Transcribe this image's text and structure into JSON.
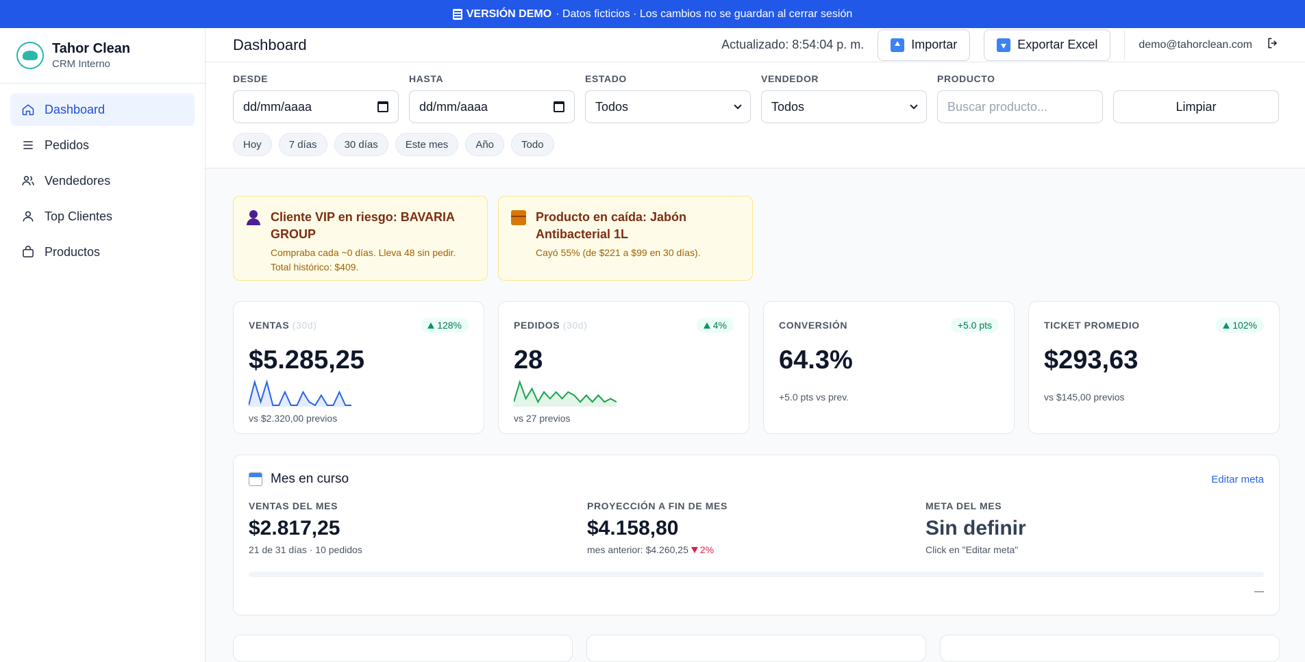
{
  "banner": {
    "icon": "clapperboard-icon",
    "strong": "VERSIÓN DEMO",
    "text": "· Datos ficticios · Los cambios no se guardan al cerrar sesión"
  },
  "brand": {
    "name": "Tahor Clean",
    "subtitle": "CRM Interno"
  },
  "nav": [
    {
      "label": "Dashboard",
      "icon": "home-icon",
      "active": true
    },
    {
      "label": "Pedidos",
      "icon": "list-icon"
    },
    {
      "label": "Vendedores",
      "icon": "users-icon"
    },
    {
      "label": "Top Clientes",
      "icon": "user-icon"
    },
    {
      "label": "Productos",
      "icon": "bag-icon"
    }
  ],
  "header": {
    "title": "Dashboard",
    "updated": "Actualizado: 8:54:04 p. m.",
    "import_label": "Importar",
    "export_label": "Exportar Excel",
    "user_email": "demo@tahorclean.com"
  },
  "filters": {
    "from": {
      "label": "DESDE",
      "value": "dd/mm/aaaa"
    },
    "to": {
      "label": "HASTA",
      "value": "dd/mm/aaaa"
    },
    "status": {
      "label": "ESTADO",
      "value": "Todos"
    },
    "seller": {
      "label": "VENDEDOR",
      "value": "Todos"
    },
    "product": {
      "label": "PRODUCTO",
      "placeholder": "Buscar producto..."
    },
    "clear_label": "Limpiar",
    "chips": [
      "Hoy",
      "7 días",
      "30 días",
      "Este mes",
      "Año",
      "Todo"
    ]
  },
  "alerts": [
    {
      "icon": "person-icon",
      "title": "Cliente VIP en riesgo: BAVARIA GROUP",
      "desc": "Compraba cada ~0 días. Lleva 48 sin pedir. Total histórico: $409."
    },
    {
      "icon": "package-icon",
      "title": "Producto en caída: Jabón Antibacterial 1L",
      "desc": "Cayó 55% (de $221 a $99 en 30 días)."
    }
  ],
  "kpis": [
    {
      "label": "VENTAS",
      "period": "(30d)",
      "badge": "128%",
      "value": "$5.285,25",
      "sub": "vs $2.320,00 previos",
      "spark_color": "#2563eb",
      "spark": [
        0,
        7,
        1,
        7,
        0,
        0,
        4,
        0,
        0,
        4,
        1,
        0,
        3,
        0,
        0,
        4,
        0,
        0
      ]
    },
    {
      "label": "PEDIDOS",
      "period": "(30d)",
      "badge": "4%",
      "value": "28",
      "sub": "vs 27 previos",
      "spark_color": "#16a34a",
      "spark": [
        1,
        7,
        2,
        5,
        1,
        4,
        2,
        4,
        2,
        4,
        3,
        1,
        3,
        1,
        3,
        1,
        2,
        1
      ]
    },
    {
      "label": "CONVERSIÓN",
      "period": "",
      "badge": "+5.0 pts",
      "value": "64.3%",
      "sub": "+5.0 pts vs prev."
    },
    {
      "label": "TICKET PROMEDIO",
      "period": "",
      "badge": "102%",
      "value": "$293,63",
      "sub": "vs $145,00 previos"
    }
  ],
  "month": {
    "title": "Mes en curso",
    "edit_label": "Editar meta",
    "sales": {
      "label": "VENTAS DEL MES",
      "value": "$2.817,25",
      "sub": "21 de 31 días · 10 pedidos"
    },
    "projection": {
      "label": "PROYECCIÓN A FIN DE MES",
      "value": "$4.158,80",
      "sub": "mes anterior: $4.260,25",
      "change": "2%"
    },
    "goal": {
      "label": "META DEL MES",
      "value": "Sin definir",
      "sub": "Click en \"Editar meta\""
    },
    "progress_pct": 0,
    "progress_text": "—"
  }
}
